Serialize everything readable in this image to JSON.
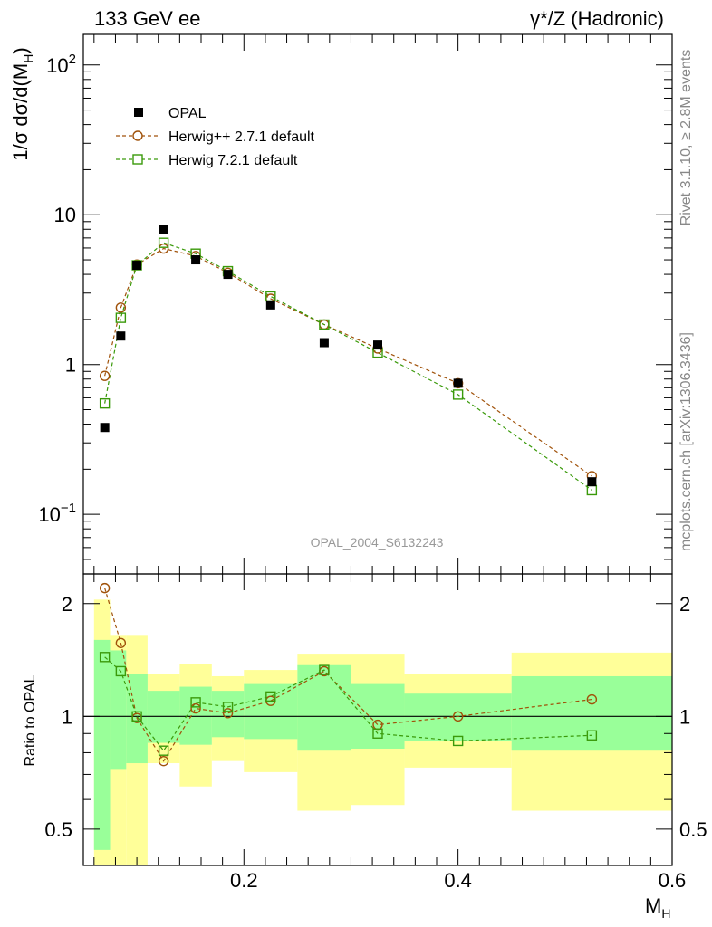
{
  "header": {
    "left": "133 GeV ee",
    "right": "γ*/Z (Hadronic)"
  },
  "side_labels": {
    "rivet": "Rivet 3.1.10, ≥ 2.8M events",
    "mcplots": "mcplots.cern.ch [arXiv:1306.3436]"
  },
  "analysis_id": "OPAL_2004_S6132243",
  "colors": {
    "opal": "#000000",
    "herwigpp": "#a0520a",
    "herwig7": "#3a9a0a",
    "band_inner": "#99ff99",
    "band_outer": "#ffff99"
  },
  "chart_data": [
    {
      "type": "scatter",
      "panel": "main",
      "ylabel": "1/σ dσ/d(M_H)",
      "yscale": "log",
      "ylim": [
        0.04,
        160
      ],
      "xlim": [
        0.05,
        0.6
      ],
      "yticks": [
        {
          "value": 0.1,
          "base": "10",
          "exp": "−1"
        },
        {
          "value": 1,
          "label": "1"
        },
        {
          "value": 10,
          "label": "10"
        },
        {
          "value": 100,
          "base": "10",
          "exp": "2"
        }
      ],
      "legend": {
        "position": "top-left",
        "entries": [
          {
            "label": "OPAL",
            "marker": "filled-square",
            "color": "#000000"
          },
          {
            "label": "Herwig++ 2.7.1 default",
            "marker": "open-circle",
            "color": "#a0520a"
          },
          {
            "label": "Herwig 7.2.1 default",
            "marker": "open-square",
            "color": "#3a9a0a"
          }
        ]
      },
      "series": [
        {
          "name": "OPAL",
          "x": [
            0.07,
            0.085,
            0.1,
            0.125,
            0.155,
            0.185,
            0.225,
            0.275,
            0.325,
            0.4,
            0.525
          ],
          "y": [
            0.38,
            1.55,
            4.6,
            8.0,
            5.0,
            4.0,
            2.5,
            1.4,
            1.35,
            0.75,
            0.165
          ]
        },
        {
          "name": "Herwig++ 2.7.1 default",
          "x": [
            0.07,
            0.085,
            0.1,
            0.125,
            0.155,
            0.185,
            0.225,
            0.275,
            0.325,
            0.4,
            0.525
          ],
          "y": [
            0.84,
            2.4,
            4.65,
            5.95,
            5.3,
            4.1,
            2.75,
            1.85,
            1.28,
            0.75,
            0.18
          ]
        },
        {
          "name": "Herwig 7.2.1 default",
          "x": [
            0.07,
            0.085,
            0.1,
            0.125,
            0.155,
            0.185,
            0.225,
            0.275,
            0.325,
            0.4,
            0.525
          ],
          "y": [
            0.55,
            2.05,
            4.6,
            6.5,
            5.5,
            4.2,
            2.85,
            1.85,
            1.2,
            0.63,
            0.145
          ]
        }
      ]
    },
    {
      "type": "line",
      "panel": "ratio",
      "ylabel": "Ratio to OPAL",
      "xlabel": "M_H",
      "yscale": "log",
      "ylim": [
        0.4,
        2.4
      ],
      "xlim": [
        0.05,
        0.6
      ],
      "xticks": [
        "0.2",
        "0.4",
        "0.6"
      ],
      "yticks": [
        "0.5",
        "1",
        "2"
      ],
      "reference_line": 1,
      "bins": [
        {
          "lo": 0.06,
          "hi": 0.075,
          "inner": [
            0.44,
            1.6
          ],
          "outer": [
            0.35,
            2.05
          ]
        },
        {
          "lo": 0.075,
          "hi": 0.09,
          "inner": [
            0.72,
            1.5
          ],
          "outer": [
            0.35,
            1.65
          ]
        },
        {
          "lo": 0.09,
          "hi": 0.11,
          "inner": [
            0.75,
            1.3
          ],
          "outer": [
            0.37,
            1.65
          ]
        },
        {
          "lo": 0.11,
          "hi": 0.14,
          "inner": [
            0.85,
            1.17
          ],
          "outer": [
            0.75,
            1.3
          ]
        },
        {
          "lo": 0.14,
          "hi": 0.17,
          "inner": [
            0.84,
            1.2
          ],
          "outer": [
            0.65,
            1.38
          ]
        },
        {
          "lo": 0.17,
          "hi": 0.2,
          "inner": [
            0.88,
            1.17
          ],
          "outer": [
            0.76,
            1.28
          ]
        },
        {
          "lo": 0.2,
          "hi": 0.25,
          "inner": [
            0.87,
            1.22
          ],
          "outer": [
            0.71,
            1.33
          ]
        },
        {
          "lo": 0.25,
          "hi": 0.3,
          "inner": [
            0.81,
            1.37
          ],
          "outer": [
            0.56,
            1.47
          ]
        },
        {
          "lo": 0.3,
          "hi": 0.35,
          "inner": [
            0.82,
            1.22
          ],
          "outer": [
            0.58,
            1.47
          ]
        },
        {
          "lo": 0.35,
          "hi": 0.45,
          "inner": [
            0.86,
            1.15
          ],
          "outer": [
            0.73,
            1.3
          ]
        },
        {
          "lo": 0.45,
          "hi": 0.6,
          "inner": [
            0.81,
            1.28
          ],
          "outer": [
            0.56,
            1.48
          ]
        }
      ],
      "series": [
        {
          "name": "Herwig++ 2.7.1 default",
          "x": [
            0.07,
            0.085,
            0.1,
            0.125,
            0.155,
            0.185,
            0.225,
            0.275,
            0.325,
            0.4,
            0.525
          ],
          "y": [
            2.2,
            1.57,
            0.99,
            0.76,
            1.05,
            1.02,
            1.1,
            1.32,
            0.95,
            1.0,
            1.11
          ]
        },
        {
          "name": "Herwig 7.2.1 default",
          "x": [
            0.07,
            0.085,
            0.1,
            0.125,
            0.155,
            0.185,
            0.225,
            0.275,
            0.325,
            0.4,
            0.525
          ],
          "y": [
            1.44,
            1.32,
            1.0,
            0.81,
            1.09,
            1.06,
            1.13,
            1.33,
            0.9,
            0.86,
            0.89
          ]
        }
      ]
    }
  ]
}
